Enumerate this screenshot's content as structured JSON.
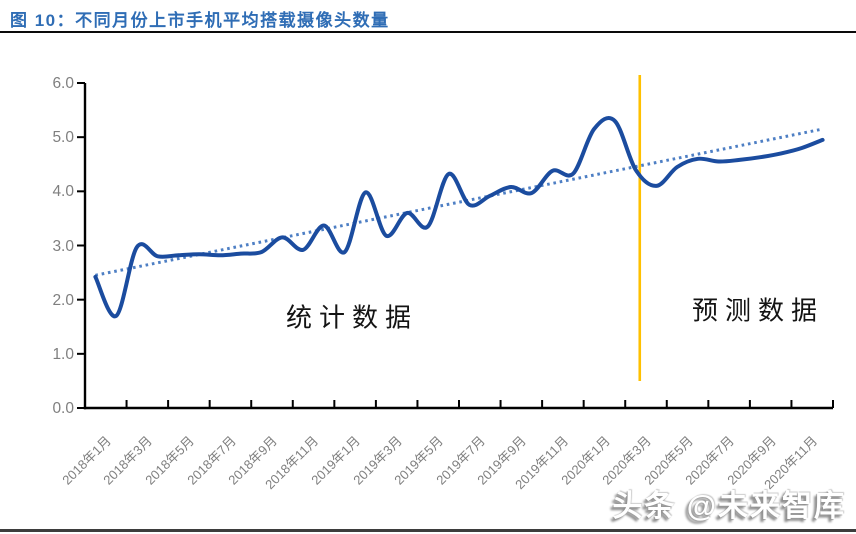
{
  "header": {
    "title": "图 10：不同月份上市手机平均搭载摄像头数量"
  },
  "watermark": {
    "text": "头条 @未来智库"
  },
  "chart_data": {
    "type": "line",
    "title": "不同月份上市手机平均搭载摄像头数量",
    "x": [
      "2018年1月",
      "2018年2月",
      "2018年3月",
      "2018年4月",
      "2018年5月",
      "2018年6月",
      "2018年7月",
      "2018年8月",
      "2018年9月",
      "2018年10月",
      "2018年11月",
      "2018年12月",
      "2019年1月",
      "2019年2月",
      "2019年3月",
      "2019年4月",
      "2019年5月",
      "2019年6月",
      "2019年7月",
      "2019年8月",
      "2019年9月",
      "2019年10月",
      "2019年11月",
      "2019年12月",
      "2020年1月",
      "2020年2月",
      "2020年3月",
      "2020年4月",
      "2020年5月",
      "2020年6月",
      "2020年7月",
      "2020年8月",
      "2020年9月",
      "2020年10月",
      "2020年11月",
      "2020年12月"
    ],
    "series": [
      {
        "name": "平均搭载摄像头数量",
        "values": [
          2.42,
          1.7,
          2.97,
          2.8,
          2.82,
          2.84,
          2.82,
          2.85,
          2.88,
          3.15,
          2.92,
          3.37,
          2.88,
          3.98,
          3.18,
          3.6,
          3.35,
          4.32,
          3.75,
          3.92,
          4.08,
          3.97,
          4.38,
          4.33,
          5.15,
          5.3,
          4.4,
          4.1,
          4.45,
          4.6,
          4.55,
          4.58,
          4.63,
          4.7,
          4.8,
          4.95
        ]
      }
    ],
    "trendline": {
      "style": "dotted",
      "start": 2.45,
      "end": 5.15
    },
    "divider": {
      "month_index": 26.2,
      "color": "#FFC000"
    },
    "annotations": [
      {
        "text": "统计数据",
        "cx": 352,
        "cy": 316
      },
      {
        "text": "预测数据",
        "cx": 758,
        "cy": 309
      }
    ],
    "ylim": [
      0,
      6
    ],
    "yticks": [
      "0.0",
      "1.0",
      "2.0",
      "3.0",
      "4.0",
      "5.0",
      "6.0"
    ],
    "xtick_labels": [
      "2018年1月",
      "2018年3月",
      "2018年5月",
      "2018年7月",
      "2018年9月",
      "2018年11月",
      "2019年1月",
      "2019年3月",
      "2019年5月",
      "2019年7月",
      "2019年9月",
      "2019年11月",
      "2020年1月",
      "2020年3月",
      "2020年5月",
      "2020年7月",
      "2020年9月",
      "2020年11月"
    ],
    "grid": "off",
    "legend": "none",
    "colors": {
      "line": "#1b4c9f",
      "trend": "#4e7fc4",
      "divider": "#FFC000",
      "axis": "#000000",
      "tick_text": "#7f7f7f",
      "title": "#2f6db5"
    }
  }
}
